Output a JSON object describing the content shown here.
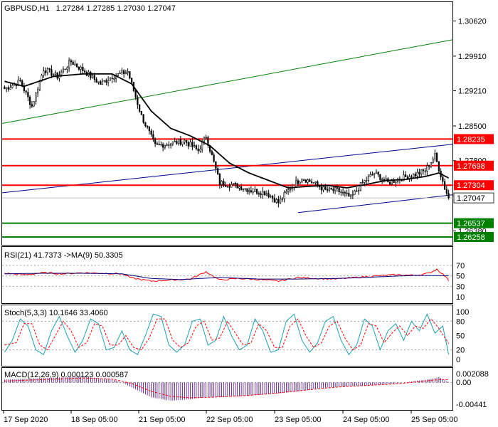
{
  "colors": {
    "bull_candle": "#ffffff",
    "bear_candle": "#000000",
    "candle_outline": "#000000",
    "ma_line": "#000000",
    "resistance_line": "#ff0000",
    "support_line": "#008000",
    "channel_upper": "#00008b",
    "channel_lower": "#00008b",
    "trend_line": "#008000",
    "rsi_line": "#ff0000",
    "rsi_signal": "#000080",
    "stoch_main": "#1fa0b0",
    "stoch_signal": "#ff0000",
    "macd_hist": "#4b0082",
    "macd_signal": "#ff0000",
    "label_fill_red": "#ff0000",
    "label_fill_green": "#008000",
    "current_label_fill": "#ffffff",
    "grid_dotted": "#a0a0a0"
  },
  "header": {
    "symbol_label": "GBPUSD,H1",
    "ohlc": "1.27284 1.27285 1.27030 1.27047"
  },
  "chart_data": [
    {
      "type": "candlestick",
      "title": "GBPUSD,H1 1.27284 1.27285 1.27030 1.27047",
      "ylim": [
        1.261,
        1.31
      ],
      "y_ticks": [
        "1.30620",
        "1.29910",
        "1.29210",
        "1.28500",
        "1.27800",
        "1.27047",
        "1.26380"
      ],
      "levels": [
        {
          "label": "1.28235",
          "value": 1.28235,
          "kind": "resistance"
        },
        {
          "label": "1.27698",
          "value": 1.27698,
          "kind": "resistance"
        },
        {
          "label": "1.27304",
          "value": 1.27304,
          "kind": "resistance"
        },
        {
          "label": "1.26537",
          "value": 1.26537,
          "kind": "support"
        },
        {
          "label": "1.26258",
          "value": 1.26258,
          "kind": "support"
        }
      ],
      "current_price_label": "1.27047",
      "x_labels": [
        "17 Sep 2020",
        "18 Sep 05:00",
        "21 Sep 05:00",
        "22 Sep 05:00",
        "23 Sep 05:00",
        "24 Sep 05:00",
        "25 Sep 05:00"
      ],
      "close_anchors": [
        [
          0,
          1.2925
        ],
        [
          8,
          1.294
        ],
        [
          14,
          1.289
        ],
        [
          20,
          1.2965
        ],
        [
          27,
          1.295
        ],
        [
          34,
          1.298
        ],
        [
          41,
          1.296
        ],
        [
          49,
          1.2935
        ],
        [
          55,
          1.295
        ],
        [
          63,
          1.296
        ],
        [
          70,
          1.287
        ],
        [
          77,
          1.281
        ],
        [
          85,
          1.2815
        ],
        [
          92,
          1.282
        ],
        [
          99,
          1.28
        ],
        [
          103,
          1.283
        ],
        [
          110,
          1.2735
        ],
        [
          118,
          1.273
        ],
        [
          126,
          1.272
        ],
        [
          134,
          1.2715
        ],
        [
          140,
          1.2695
        ],
        [
          146,
          1.2725
        ],
        [
          152,
          1.2745
        ],
        [
          158,
          1.2735
        ],
        [
          164,
          1.272
        ],
        [
          170,
          1.272
        ],
        [
          177,
          1.2705
        ],
        [
          183,
          1.2735
        ],
        [
          189,
          1.2755
        ],
        [
          196,
          1.2735
        ],
        [
          203,
          1.2745
        ],
        [
          210,
          1.2752
        ],
        [
          215,
          1.276
        ],
        [
          220,
          1.279
        ],
        [
          225,
          1.2725
        ],
        [
          227,
          1.27047
        ]
      ],
      "moving_average_anchors": [
        [
          0,
          1.294
        ],
        [
          10,
          1.293
        ],
        [
          25,
          1.295
        ],
        [
          40,
          1.2955
        ],
        [
          55,
          1.2955
        ],
        [
          65,
          1.2935
        ],
        [
          75,
          1.288
        ],
        [
          85,
          1.2845
        ],
        [
          95,
          1.283
        ],
        [
          105,
          1.281
        ],
        [
          115,
          1.2775
        ],
        [
          125,
          1.2755
        ],
        [
          135,
          1.274
        ],
        [
          145,
          1.2725
        ],
        [
          155,
          1.2728
        ],
        [
          165,
          1.273
        ],
        [
          175,
          1.2725
        ],
        [
          185,
          1.2732
        ],
        [
          195,
          1.274
        ],
        [
          205,
          1.2742
        ],
        [
          215,
          1.2748
        ],
        [
          222,
          1.2755
        ],
        [
          227,
          1.2745
        ]
      ],
      "trend_lines": [
        {
          "name": "upper-trend",
          "kind": "trend",
          "points": [
            [
              0,
              1.2855
            ],
            [
              233,
              1.3024
            ]
          ]
        },
        {
          "name": "channel-upper",
          "kind": "channel_upper",
          "points": [
            [
              0,
              1.2715
            ],
            [
              233,
              1.2813
            ]
          ]
        },
        {
          "name": "channel-lower",
          "kind": "channel_lower",
          "points": [
            [
              150,
              1.2675
            ],
            [
              233,
              1.2711
            ]
          ]
        }
      ],
      "bar_count": 228
    },
    {
      "type": "line",
      "title": "RSI(21) 41.7373 ->MA(9) 50.3305",
      "ylim": [
        0,
        100
      ],
      "ticks": [
        "70",
        "50",
        "30",
        "10"
      ],
      "rsi_anchors": [
        [
          0,
          55
        ],
        [
          10,
          52
        ],
        [
          20,
          56
        ],
        [
          30,
          54
        ],
        [
          40,
          56
        ],
        [
          50,
          55
        ],
        [
          60,
          54
        ],
        [
          65,
          46
        ],
        [
          75,
          40
        ],
        [
          85,
          42
        ],
        [
          95,
          44
        ],
        [
          103,
          58
        ],
        [
          110,
          42
        ],
        [
          120,
          45
        ],
        [
          130,
          43
        ],
        [
          140,
          40
        ],
        [
          150,
          47
        ],
        [
          160,
          45
        ],
        [
          170,
          44
        ],
        [
          180,
          47
        ],
        [
          190,
          50
        ],
        [
          200,
          52
        ],
        [
          210,
          51
        ],
        [
          217,
          55
        ],
        [
          221,
          63
        ],
        [
          225,
          50
        ],
        [
          227,
          41.7
        ]
      ],
      "ma_anchors": [
        [
          0,
          54
        ],
        [
          20,
          55
        ],
        [
          40,
          55
        ],
        [
          60,
          54
        ],
        [
          75,
          45
        ],
        [
          90,
          43
        ],
        [
          110,
          47
        ],
        [
          130,
          44
        ],
        [
          150,
          44
        ],
        [
          170,
          45
        ],
        [
          190,
          48
        ],
        [
          210,
          51
        ],
        [
          227,
          50.3
        ]
      ]
    },
    {
      "type": "line",
      "title": "Stoch(5,3,3) 10.1646 33.4060",
      "ylim": [
        0,
        100
      ],
      "ticks": [
        "100",
        "80",
        "50",
        "20",
        "0"
      ],
      "main_anchors": [
        [
          0,
          15
        ],
        [
          4,
          40
        ],
        [
          8,
          85
        ],
        [
          12,
          70
        ],
        [
          16,
          20
        ],
        [
          20,
          10
        ],
        [
          24,
          60
        ],
        [
          28,
          90
        ],
        [
          32,
          50
        ],
        [
          36,
          15
        ],
        [
          40,
          40
        ],
        [
          44,
          85
        ],
        [
          48,
          75
        ],
        [
          52,
          20
        ],
        [
          56,
          25
        ],
        [
          60,
          60
        ],
        [
          64,
          20
        ],
        [
          68,
          10
        ],
        [
          72,
          50
        ],
        [
          76,
          95
        ],
        [
          80,
          90
        ],
        [
          84,
          30
        ],
        [
          88,
          15
        ],
        [
          92,
          30
        ],
        [
          96,
          80
        ],
        [
          100,
          85
        ],
        [
          104,
          30
        ],
        [
          108,
          40
        ],
        [
          112,
          90
        ],
        [
          116,
          50
        ],
        [
          120,
          20
        ],
        [
          124,
          30
        ],
        [
          128,
          85
        ],
        [
          132,
          60
        ],
        [
          136,
          15
        ],
        [
          140,
          20
        ],
        [
          144,
          80
        ],
        [
          148,
          95
        ],
        [
          152,
          40
        ],
        [
          156,
          15
        ],
        [
          160,
          35
        ],
        [
          164,
          80
        ],
        [
          168,
          90
        ],
        [
          172,
          40
        ],
        [
          176,
          10
        ],
        [
          180,
          30
        ],
        [
          184,
          85
        ],
        [
          188,
          70
        ],
        [
          192,
          20
        ],
        [
          196,
          60
        ],
        [
          200,
          75
        ],
        [
          204,
          40
        ],
        [
          208,
          80
        ],
        [
          212,
          60
        ],
        [
          216,
          95
        ],
        [
          220,
          55
        ],
        [
          224,
          70
        ],
        [
          227,
          10
        ]
      ],
      "signal_anchors": [
        [
          0,
          30
        ],
        [
          6,
          35
        ],
        [
          10,
          75
        ],
        [
          14,
          75
        ],
        [
          18,
          30
        ],
        [
          22,
          20
        ],
        [
          26,
          50
        ],
        [
          30,
          80
        ],
        [
          34,
          60
        ],
        [
          38,
          25
        ],
        [
          42,
          35
        ],
        [
          46,
          75
        ],
        [
          50,
          70
        ],
        [
          54,
          30
        ],
        [
          58,
          30
        ],
        [
          62,
          50
        ],
        [
          66,
          25
        ],
        [
          70,
          20
        ],
        [
          74,
          45
        ],
        [
          78,
          85
        ],
        [
          82,
          85
        ],
        [
          86,
          40
        ],
        [
          90,
          25
        ],
        [
          94,
          35
        ],
        [
          98,
          70
        ],
        [
          102,
          80
        ],
        [
          106,
          40
        ],
        [
          110,
          45
        ],
        [
          114,
          80
        ],
        [
          118,
          55
        ],
        [
          122,
          30
        ],
        [
          126,
          35
        ],
        [
          130,
          75
        ],
        [
          134,
          60
        ],
        [
          138,
          25
        ],
        [
          142,
          25
        ],
        [
          146,
          70
        ],
        [
          150,
          85
        ],
        [
          154,
          50
        ],
        [
          158,
          25
        ],
        [
          162,
          35
        ],
        [
          166,
          70
        ],
        [
          170,
          80
        ],
        [
          174,
          45
        ],
        [
          178,
          20
        ],
        [
          182,
          30
        ],
        [
          186,
          75
        ],
        [
          190,
          70
        ],
        [
          194,
          35
        ],
        [
          198,
          55
        ],
        [
          202,
          70
        ],
        [
          206,
          50
        ],
        [
          210,
          70
        ],
        [
          214,
          65
        ],
        [
          218,
          85
        ],
        [
          222,
          65
        ],
        [
          227,
          33.4
        ]
      ]
    },
    {
      "type": "bar",
      "title": "MACD(12,26,9) 0.000123 0.000587",
      "ylim": [
        -0.00441,
        0.002088
      ],
      "ticks": [
        "0.002088",
        "0.00",
        "-0.00441"
      ],
      "hist_anchors": [
        [
          0,
          0.0006
        ],
        [
          20,
          0.0009
        ],
        [
          40,
          0.0012
        ],
        [
          55,
          0.0006
        ],
        [
          60,
          0.0
        ],
        [
          65,
          -0.001
        ],
        [
          75,
          -0.003
        ],
        [
          85,
          -0.0037
        ],
        [
          95,
          -0.0034
        ],
        [
          102,
          -0.003
        ],
        [
          110,
          -0.003
        ],
        [
          120,
          -0.0028
        ],
        [
          130,
          -0.0025
        ],
        [
          140,
          -0.0022
        ],
        [
          150,
          -0.0018
        ],
        [
          160,
          -0.0012
        ],
        [
          170,
          -0.0009
        ],
        [
          180,
          -0.0007
        ],
        [
          190,
          -0.0005
        ],
        [
          200,
          -0.0002
        ],
        [
          210,
          0.0003
        ],
        [
          218,
          0.0007
        ],
        [
          222,
          0.0011
        ],
        [
          227,
          0.0001
        ]
      ],
      "signal_anchors": [
        [
          0,
          0.0003
        ],
        [
          20,
          0.0006
        ],
        [
          40,
          0.0009
        ],
        [
          55,
          0.0007
        ],
        [
          65,
          -0.0002
        ],
        [
          75,
          -0.0018
        ],
        [
          85,
          -0.0028
        ],
        [
          95,
          -0.0031
        ],
        [
          105,
          -0.003
        ],
        [
          115,
          -0.0028
        ],
        [
          125,
          -0.0026
        ],
        [
          135,
          -0.0023
        ],
        [
          145,
          -0.0019
        ],
        [
          155,
          -0.0015
        ],
        [
          165,
          -0.0011
        ],
        [
          175,
          -0.0008
        ],
        [
          185,
          -0.0006
        ],
        [
          195,
          -0.0004
        ],
        [
          205,
          -0.0001
        ],
        [
          215,
          0.0003
        ],
        [
          222,
          0.0006
        ],
        [
          227,
          0.000587
        ]
      ]
    }
  ]
}
